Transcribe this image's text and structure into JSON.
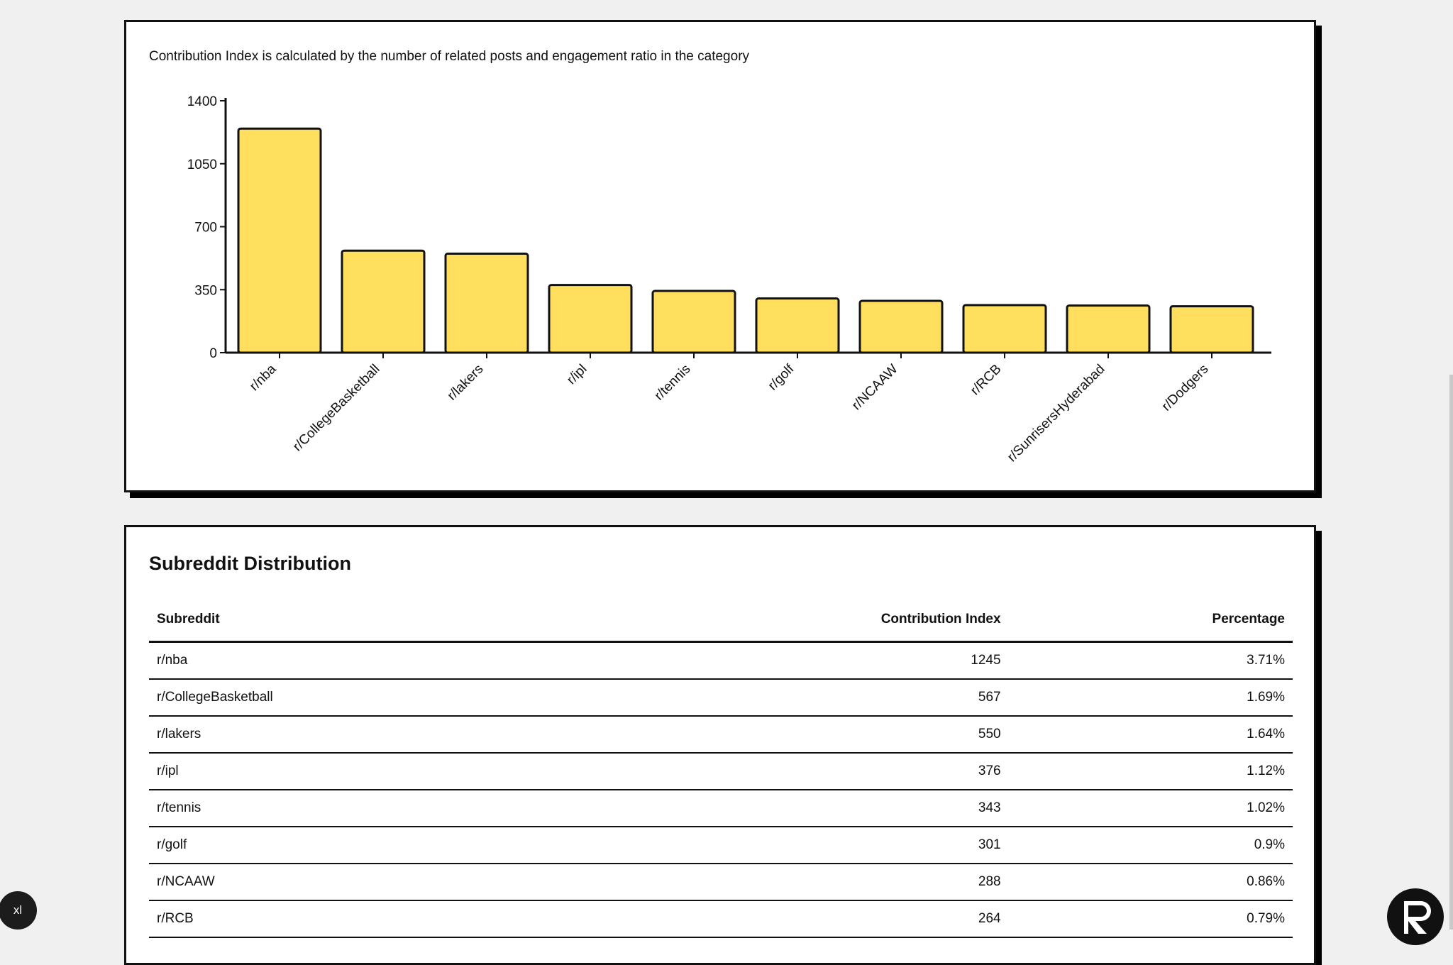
{
  "chart_note": "Contribution Index is calculated by the number of related posts and engagement ratio in the category",
  "chart_data": {
    "type": "bar",
    "categories": [
      "r/nba",
      "r/CollegeBasketball",
      "r/lakers",
      "r/ipl",
      "r/tennis",
      "r/golf",
      "r/NCAAW",
      "r/RCB",
      "r/SunrisersHyderabad",
      "r/Dodgers"
    ],
    "values": [
      1245,
      567,
      550,
      376,
      343,
      301,
      288,
      264,
      262,
      258
    ],
    "ylim": [
      0,
      1400
    ],
    "yticks": [
      0,
      350,
      700,
      1050,
      1400
    ],
    "bar_color": "#ffdf5d",
    "grid": false
  },
  "distribution": {
    "title": "Subreddit Distribution",
    "headers": [
      "Subreddit",
      "Contribution Index",
      "Percentage"
    ],
    "rows": [
      [
        "r/nba",
        "1245",
        "3.71%"
      ],
      [
        "r/CollegeBasketball",
        "567",
        "1.69%"
      ],
      [
        "r/lakers",
        "550",
        "1.64%"
      ],
      [
        "r/ipl",
        "376",
        "1.12%"
      ],
      [
        "r/tennis",
        "343",
        "1.02%"
      ],
      [
        "r/golf",
        "301",
        "0.9%"
      ],
      [
        "r/NCAAW",
        "288",
        "0.86%"
      ],
      [
        "r/RCB",
        "264",
        "0.79%"
      ]
    ]
  },
  "badge": {
    "label": "xl"
  },
  "logo": {
    "icon": "brand-logo-icon"
  }
}
